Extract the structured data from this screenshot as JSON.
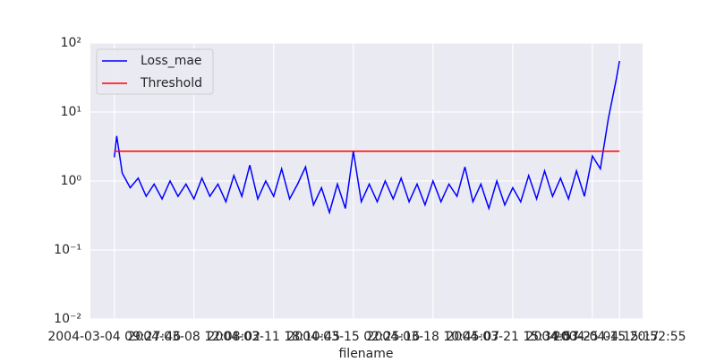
{
  "chart_data": {
    "type": "line",
    "x_label": "filename",
    "ylog": true,
    "grid": true,
    "legend": "upper left",
    "xlim": [
      -30,
      663
    ],
    "ylim": [
      0.01,
      100
    ],
    "xticks": [
      {
        "value": 0,
        "label": "2004-03-04 09:27:46"
      },
      {
        "value": 100,
        "label": "2004-03-08 12:08:02"
      },
      {
        "value": 200,
        "label": "2004-03-11 18:10:45"
      },
      {
        "value": 300,
        "label": "2004-03-15 02:25:16"
      },
      {
        "value": 400,
        "label": "2004-03-18 10:45:07"
      },
      {
        "value": 500,
        "label": "2004-03-21 15:34:57"
      },
      {
        "value": 600,
        "label": "2004-03-25 04:15:17"
      },
      {
        "value": 634,
        "label": "2004-04-15 20:52:55"
      }
    ],
    "yticks": [
      {
        "value": 0.01,
        "label": "10⁻²"
      },
      {
        "value": 0.1,
        "label": "10⁻¹"
      },
      {
        "value": 1,
        "label": "10⁰"
      },
      {
        "value": 10,
        "label": "10¹"
      },
      {
        "value": 100,
        "label": "10²"
      }
    ],
    "series": [
      {
        "name": "Loss_mae",
        "color": "#0000ff",
        "x": [
          0,
          3,
          10,
          20,
          30,
          40,
          50,
          60,
          70,
          80,
          90,
          100,
          110,
          120,
          130,
          140,
          150,
          160,
          170,
          180,
          190,
          200,
          210,
          220,
          230,
          240,
          250,
          260,
          270,
          280,
          290,
          300,
          310,
          320,
          330,
          340,
          350,
          360,
          370,
          380,
          390,
          400,
          410,
          420,
          430,
          440,
          450,
          460,
          470,
          480,
          490,
          500,
          510,
          520,
          530,
          540,
          550,
          560,
          570,
          580,
          590,
          600,
          610,
          620,
          630,
          634
        ],
        "values": [
          2.2,
          4.5,
          1.3,
          0.8,
          1.1,
          0.6,
          0.9,
          0.55,
          1.0,
          0.6,
          0.9,
          0.55,
          1.1,
          0.6,
          0.9,
          0.5,
          1.2,
          0.6,
          1.7,
          0.55,
          1.0,
          0.6,
          1.5,
          0.55,
          0.9,
          1.6,
          0.45,
          0.8,
          0.35,
          0.9,
          0.4,
          2.7,
          0.5,
          0.9,
          0.5,
          1.0,
          0.55,
          1.1,
          0.5,
          0.9,
          0.45,
          1.0,
          0.5,
          0.9,
          0.6,
          1.6,
          0.5,
          0.9,
          0.4,
          1.0,
          0.45,
          0.8,
          0.5,
          1.2,
          0.55,
          1.4,
          0.6,
          1.1,
          0.55,
          1.4,
          0.6,
          2.3,
          1.5,
          8,
          30,
          55
        ]
      },
      {
        "name": "Threshold",
        "color": "#ff0000",
        "x": [
          0,
          634
        ],
        "values": [
          2.7,
          2.7
        ]
      }
    ]
  }
}
